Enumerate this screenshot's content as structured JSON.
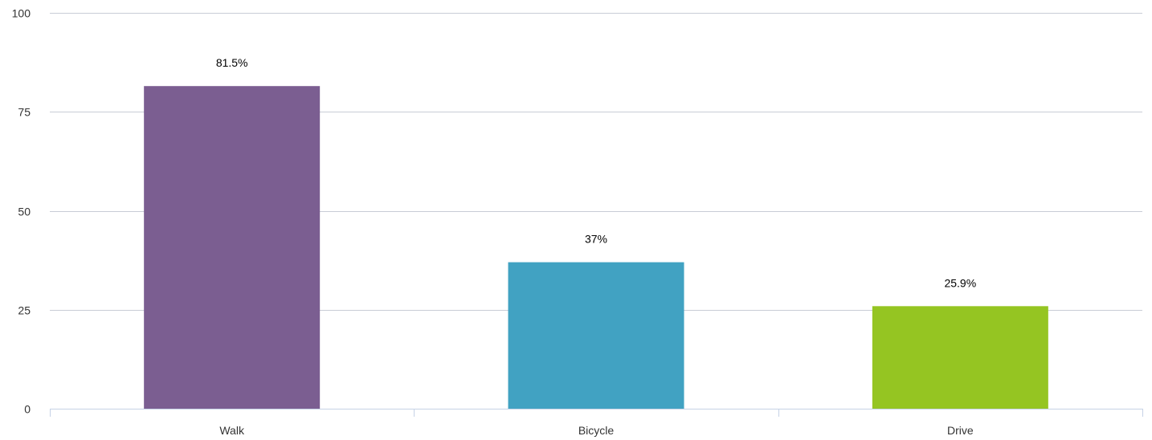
{
  "chart_data": {
    "type": "bar",
    "categories": [
      "Walk",
      "Bicycle",
      "Drive"
    ],
    "values": [
      81.5,
      37,
      25.9
    ],
    "value_labels": [
      "81.5%",
      "37%",
      "25.9%"
    ],
    "colors": [
      "#7b5e91",
      "#41a2c2",
      "#95c522"
    ],
    "ylim": [
      0,
      100
    ],
    "yticks": [
      0,
      25,
      50,
      75,
      100
    ],
    "grid": true,
    "gridline_color": "#c8ccd6",
    "axis_color": "#c6d2e6",
    "legend": "none"
  }
}
